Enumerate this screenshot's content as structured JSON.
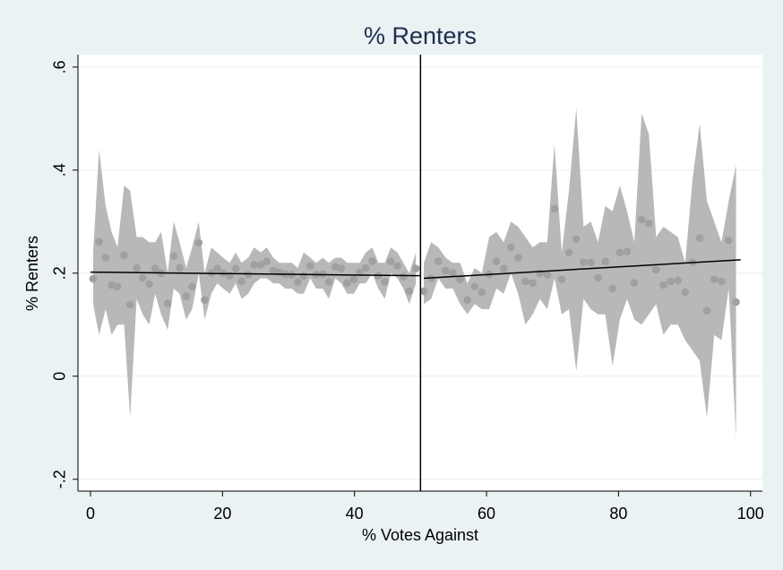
{
  "chart_data": {
    "type": "rdplot",
    "title": "% Renters",
    "x_label": "% Votes Against",
    "y_label": "% Renters",
    "xlim": [
      -1.9,
      101.8
    ],
    "ylim": [
      -0.223,
      0.624
    ],
    "xticks": [
      0,
      20,
      40,
      60,
      80,
      100
    ],
    "yticks": [
      {
        "value": -0.2,
        "label": "-.2"
      },
      0,
      {
        "value": 0.2,
        "label": ".2"
      },
      {
        "value": 0.4,
        "label": ".4"
      },
      {
        "value": 0.6,
        "label": ".6"
      }
    ],
    "grid": true,
    "cutoff": 50,
    "point_color": "#a0a0a0",
    "band_color": "#b8b8b8",
    "line_color": "#000000",
    "segments": [
      {
        "x": [
          0.4,
          1.3,
          2.3,
          3.2,
          4.1,
          5.1,
          6.0,
          7.0,
          7.9,
          8.9,
          9.8,
          10.7,
          11.7,
          12.6,
          13.5,
          14.5,
          15.4,
          16.4,
          17.3,
          18.3,
          19.2,
          20.1,
          21.1,
          22.0,
          22.9,
          23.9,
          24.8,
          25.8,
          26.7,
          27.7,
          28.6,
          29.5,
          30.5,
          31.4,
          32.3,
          33.3,
          34.2,
          35.2,
          36.1,
          37.1,
          38.0,
          38.9,
          39.9,
          40.8,
          41.7,
          42.7,
          43.6,
          44.6,
          45.5,
          46.5,
          47.4,
          48.3,
          49.3
        ],
        "values": [
          0.189,
          0.261,
          0.23,
          0.177,
          0.174,
          0.235,
          0.139,
          0.21,
          0.191,
          0.179,
          0.209,
          0.2,
          0.141,
          0.233,
          0.21,
          0.155,
          0.174,
          0.259,
          0.148,
          0.2,
          0.209,
          0.2,
          0.195,
          0.209,
          0.184,
          0.197,
          0.216,
          0.216,
          0.223,
          0.205,
          0.202,
          0.198,
          0.197,
          0.183,
          0.195,
          0.214,
          0.197,
          0.198,
          0.183,
          0.212,
          0.209,
          0.181,
          0.188,
          0.202,
          0.21,
          0.223,
          0.195,
          0.183,
          0.223,
          0.214,
          0.193,
          0.165,
          0.209
        ],
        "ci_high": [
          0.24,
          0.44,
          0.33,
          0.28,
          0.25,
          0.37,
          0.36,
          0.27,
          0.27,
          0.26,
          0.26,
          0.28,
          0.2,
          0.3,
          0.26,
          0.21,
          0.25,
          0.3,
          0.2,
          0.25,
          0.24,
          0.23,
          0.22,
          0.24,
          0.22,
          0.23,
          0.25,
          0.24,
          0.25,
          0.23,
          0.22,
          0.22,
          0.22,
          0.21,
          0.24,
          0.23,
          0.22,
          0.23,
          0.22,
          0.23,
          0.23,
          0.22,
          0.22,
          0.22,
          0.24,
          0.25,
          0.22,
          0.22,
          0.25,
          0.24,
          0.22,
          0.2,
          0.24
        ],
        "ci_low": [
          0.14,
          0.08,
          0.13,
          0.08,
          0.1,
          0.1,
          -0.08,
          0.15,
          0.12,
          0.1,
          0.16,
          0.12,
          0.09,
          0.17,
          0.16,
          0.11,
          0.13,
          0.2,
          0.11,
          0.16,
          0.18,
          0.17,
          0.16,
          0.18,
          0.15,
          0.16,
          0.18,
          0.19,
          0.19,
          0.18,
          0.18,
          0.17,
          0.17,
          0.16,
          0.16,
          0.19,
          0.17,
          0.17,
          0.15,
          0.19,
          0.18,
          0.16,
          0.16,
          0.18,
          0.18,
          0.2,
          0.17,
          0.15,
          0.2,
          0.19,
          0.17,
          0.14,
          0.18
        ],
        "fit_x": [
          0,
          50
        ],
        "fit_y": [
          0.202,
          0.195
        ]
      },
      {
        "x": [
          50.5,
          51.6,
          52.7,
          53.8,
          54.9,
          56.0,
          57.1,
          58.2,
          59.3,
          60.4,
          61.5,
          62.6,
          63.7,
          64.8,
          65.9,
          67.0,
          68.1,
          69.2,
          70.3,
          71.4,
          72.5,
          73.6,
          74.7,
          75.8,
          76.9,
          78.0,
          79.1,
          80.2,
          81.3,
          82.4,
          83.5,
          84.6,
          85.7,
          86.8,
          87.9,
          89.0,
          90.1,
          91.2,
          92.3,
          93.4,
          94.5,
          95.6,
          96.7,
          97.8
        ],
        "values": [
          0.165,
          0.19,
          0.223,
          0.205,
          0.2,
          0.188,
          0.148,
          0.174,
          0.163,
          0.198,
          0.223,
          0.209,
          0.25,
          0.23,
          0.184,
          0.181,
          0.2,
          0.197,
          0.325,
          0.188,
          0.24,
          0.266,
          0.221,
          0.221,
          0.191,
          0.223,
          0.17,
          0.24,
          0.242,
          0.181,
          0.304,
          0.297,
          0.207,
          0.177,
          0.184,
          0.186,
          0.163,
          0.221,
          0.268,
          0.127,
          0.188,
          0.184,
          0.264,
          0.144
        ],
        "ci_high": [
          0.22,
          0.26,
          0.25,
          0.23,
          0.22,
          0.22,
          0.18,
          0.21,
          0.2,
          0.27,
          0.28,
          0.26,
          0.3,
          0.29,
          0.27,
          0.25,
          0.26,
          0.26,
          0.45,
          0.24,
          0.36,
          0.52,
          0.29,
          0.3,
          0.26,
          0.33,
          0.32,
          0.37,
          0.32,
          0.26,
          0.51,
          0.47,
          0.27,
          0.29,
          0.28,
          0.27,
          0.22,
          0.38,
          0.49,
          0.34,
          0.3,
          0.26,
          0.34,
          0.41
        ],
        "ci_low": [
          0.14,
          0.15,
          0.19,
          0.17,
          0.17,
          0.14,
          0.12,
          0.14,
          0.13,
          0.13,
          0.17,
          0.16,
          0.2,
          0.16,
          0.1,
          0.12,
          0.15,
          0.13,
          0.19,
          0.12,
          0.13,
          0.01,
          0.15,
          0.13,
          0.12,
          0.12,
          0.02,
          0.11,
          0.15,
          0.11,
          0.1,
          0.12,
          0.14,
          0.08,
          0.1,
          0.1,
          0.07,
          0.05,
          0.03,
          -0.08,
          0.08,
          0.07,
          0.17,
          -0.12
        ],
        "fit_x": [
          50.5,
          98.5
        ],
        "fit_y": [
          0.19,
          0.226
        ]
      }
    ]
  }
}
